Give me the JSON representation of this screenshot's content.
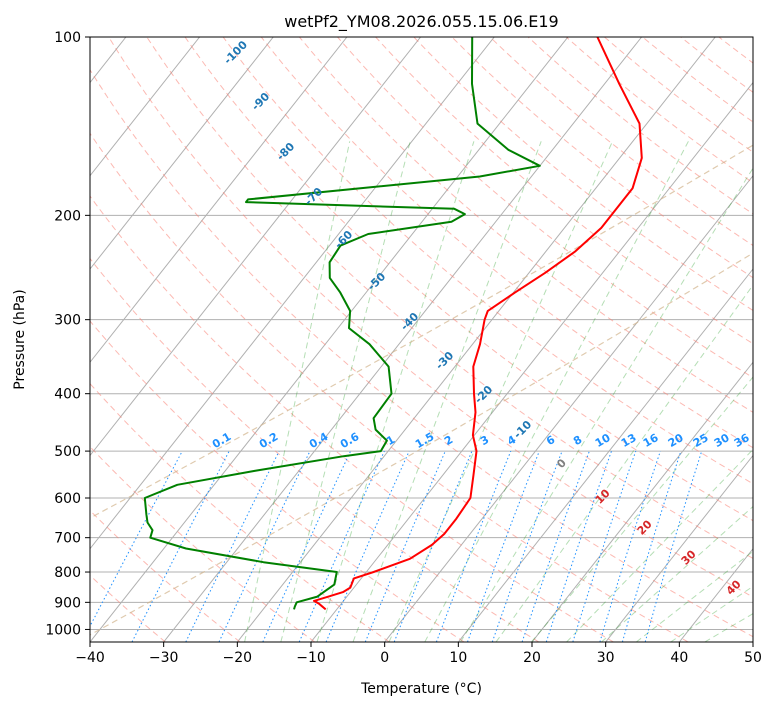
{
  "chart_data": {
    "type": "line",
    "title": "wetPf2_YM08.2026.055.15.06.E19",
    "xlabel": "Temperature (°C)",
    "ylabel": "Pressure (hPa)",
    "xlim": [
      -40,
      50
    ],
    "ylim": [
      1050,
      100
    ],
    "y_scale": "log",
    "skew": "skew-T log-p",
    "grid": true,
    "x_ticks": [
      "−40",
      "−30",
      "−20",
      "−10",
      "0",
      "10",
      "20",
      "30",
      "40",
      "50"
    ],
    "y_ticks": [
      "100",
      "200",
      "300",
      "400",
      "500",
      "600",
      "700",
      "800",
      "900",
      "1000"
    ],
    "series": [
      {
        "color": "#ff0000",
        "p": [
          925,
          905,
          895,
          880,
          865,
          850,
          820,
          800,
          760,
          720,
          690,
          650,
          600,
          550,
          500,
          470,
          430,
          400,
          360,
          330,
          300,
          290,
          270,
          250,
          230,
          210,
          180,
          160,
          140,
          120,
          100
        ],
        "t": [
          -11.5,
          -13.0,
          -14.0,
          -12.5,
          -11.0,
          -10.5,
          -11.0,
          -9.0,
          -5.5,
          -4.0,
          -3.5,
          -3.5,
          -3.8,
          -5.8,
          -8.0,
          -10.2,
          -12.3,
          -14.5,
          -17.5,
          -19.0,
          -21.0,
          -21.5,
          -19.8,
          -17.8,
          -16.0,
          -15.0,
          -15.0,
          -17.0,
          -21.0,
          -28.0,
          -36.0
        ]
      },
      {
        "color": "#008000",
        "p": [
          925,
          915,
          900,
          880,
          860,
          840,
          800,
          770,
          730,
          700,
          680,
          660,
          640,
          600,
          570,
          540,
          510,
          500,
          480,
          460,
          440,
          400,
          360,
          330,
          310,
          290,
          270,
          255,
          240,
          225,
          215,
          205,
          199,
          195,
          190,
          188,
          172,
          165,
          155,
          140,
          120,
          100
        ],
        "t": [
          -15.8,
          -16.0,
          -16.2,
          -14.0,
          -13.5,
          -13.0,
          -14.0,
          -25.0,
          -37.0,
          -43.0,
          -43.5,
          -45.0,
          -46.0,
          -48.0,
          -45.0,
          -36.0,
          -25.5,
          -21.0,
          -21.3,
          -24.0,
          -25.5,
          -25.7,
          -29.0,
          -34.0,
          -38.5,
          -40.2,
          -43.5,
          -46.5,
          -48.2,
          -48.5,
          -46.0,
          -36.0,
          -35.0,
          -37.0,
          -66.0,
          -66.0,
          -37.0,
          -30.0,
          -36.0,
          -43.0,
          -48.0,
          -53.0
        ]
      }
    ],
    "dry_adiabat_labels": [
      "-100",
      "-90",
      "-80",
      "-70",
      "-60",
      "-50",
      "-40",
      "-30",
      "-20",
      "-10"
    ],
    "mixing_ratio_labels": [
      "0.1",
      "0.2",
      "0.4",
      "0.6",
      "1",
      "1.5",
      "2",
      "3",
      "4",
      "6",
      "8",
      "10",
      "13",
      "16",
      "20",
      "25",
      "30",
      "36"
    ],
    "moist_adiabat_labels": [
      "0",
      "10",
      "20",
      "30",
      "40"
    ],
    "colors": {
      "temperature": "#ff0000",
      "dewpoint": "#008000",
      "dry_adiabat_label": "#1f77b4",
      "mixing_ratio": "#1e90ff",
      "moist_adiabat_label": "#d62728",
      "grid": "#b0b0b0"
    }
  }
}
